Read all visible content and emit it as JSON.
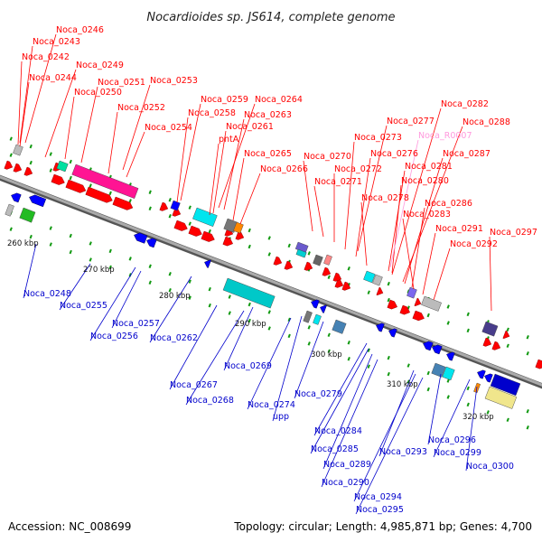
{
  "title": "Nocardioides sp. JS614, complete genome",
  "footer": {
    "accession": "Accession: NC_008699",
    "topology": "Topology: circular; Length: 4,985,871 bp; Genes: 4,700"
  },
  "colors": {
    "forward": "#ff0000",
    "reverse": "#0000ff",
    "rna": "#ff99dd",
    "axis": "#888888"
  },
  "scale_labels": [
    "260 kbp",
    "270 kbp",
    "280 kbp",
    "290 kbp",
    "300 kbp",
    "310 kbp",
    "320 kbp"
  ],
  "forward_labels": [
    "Noca_0246",
    "Noca_0243",
    "Noca_0242",
    "Noca_0244",
    "Noca_0249",
    "Noca_0250",
    "Noca_0251",
    "Noca_0253",
    "Noca_0252",
    "Noca_0254",
    "Noca_0259",
    "Noca_0264",
    "Noca_0258",
    "Noca_0263",
    "Noca_0261",
    "pntA",
    "Noca_0265",
    "Noca_0266",
    "Noca_0270",
    "Noca_0271",
    "Noca_0272",
    "Noca_0273",
    "Noca_0277",
    "Noca_0276",
    "Noca_0278",
    "Noca_0280",
    "Noca_0281",
    "Noca_0282",
    "Noca_0288",
    "Noca_0287",
    "Noca_0286",
    "Noca_0283",
    "Noca_0291",
    "Noca_0292",
    "Noca_0297"
  ],
  "rna_label": "Noca_R0007",
  "reverse_labels": [
    "Noca_0248",
    "Noca_0255",
    "Noca_0257",
    "Noca_0256",
    "Noca_0262",
    "Noca_0267",
    "Noca_0268",
    "Noca_0269",
    "Noca_0274",
    "upp",
    "Noca_0279",
    "Noca_0284",
    "Noca_0285",
    "Noca_0289",
    "Noca_0290",
    "Noca_0293",
    "Noca_0294",
    "Noca_0295",
    "Noca_0296",
    "Noca_0299",
    "Noca_0300"
  ]
}
